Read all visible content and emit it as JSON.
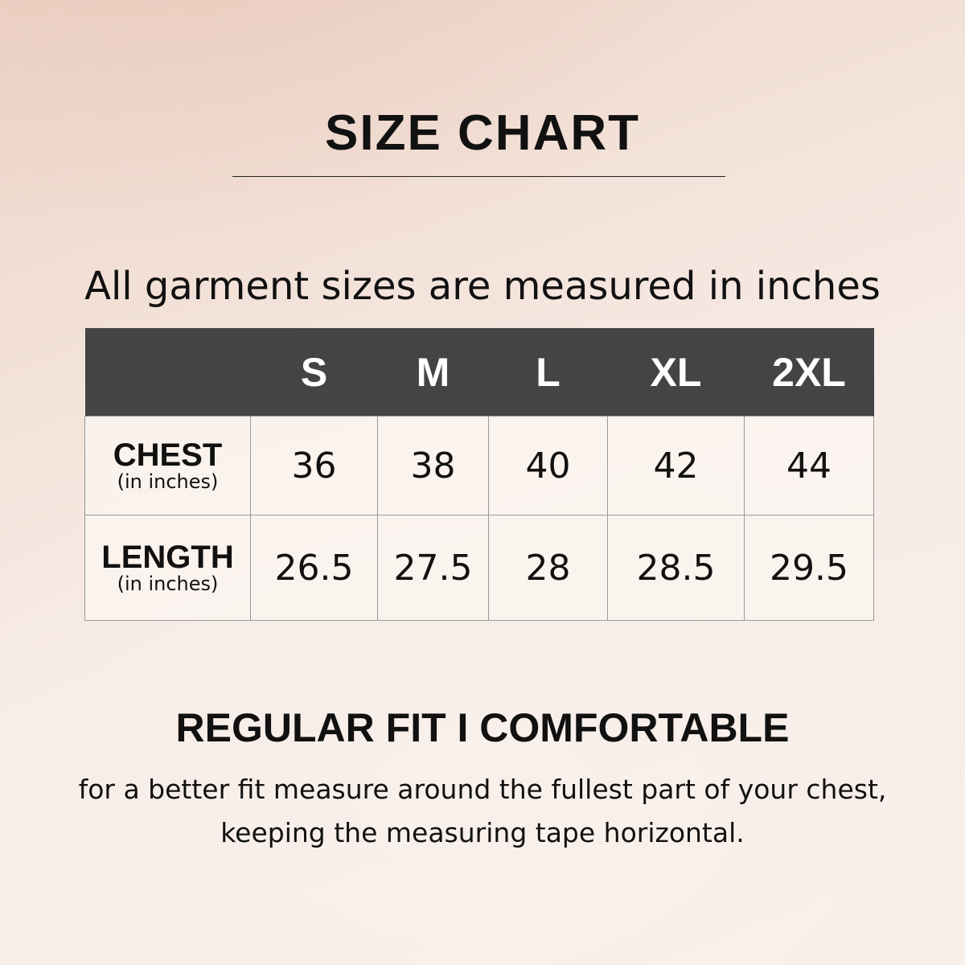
{
  "title": "SIZE CHART",
  "subtitle": "All garment sizes are measured in inches",
  "table": {
    "columns": [
      "S",
      "M",
      "L",
      "XL",
      "2XL"
    ],
    "rows": [
      {
        "label": "CHEST",
        "unit": "(in inches)",
        "values": [
          "36",
          "38",
          "40",
          "42",
          "44"
        ]
      },
      {
        "label": "LENGTH",
        "unit": "(in inches)",
        "values": [
          "26.5",
          "27.5",
          "28",
          "28.5",
          "29.5"
        ]
      }
    ]
  },
  "fit": "REGULAR FIT I COMFORTABLE",
  "note": {
    "line1": "for a better fit measure around the fullest part of your chest,",
    "line2": "keeping the measuring tape horizontal."
  },
  "colors": {
    "header": "#444444",
    "background": "#f3e2d9"
  }
}
